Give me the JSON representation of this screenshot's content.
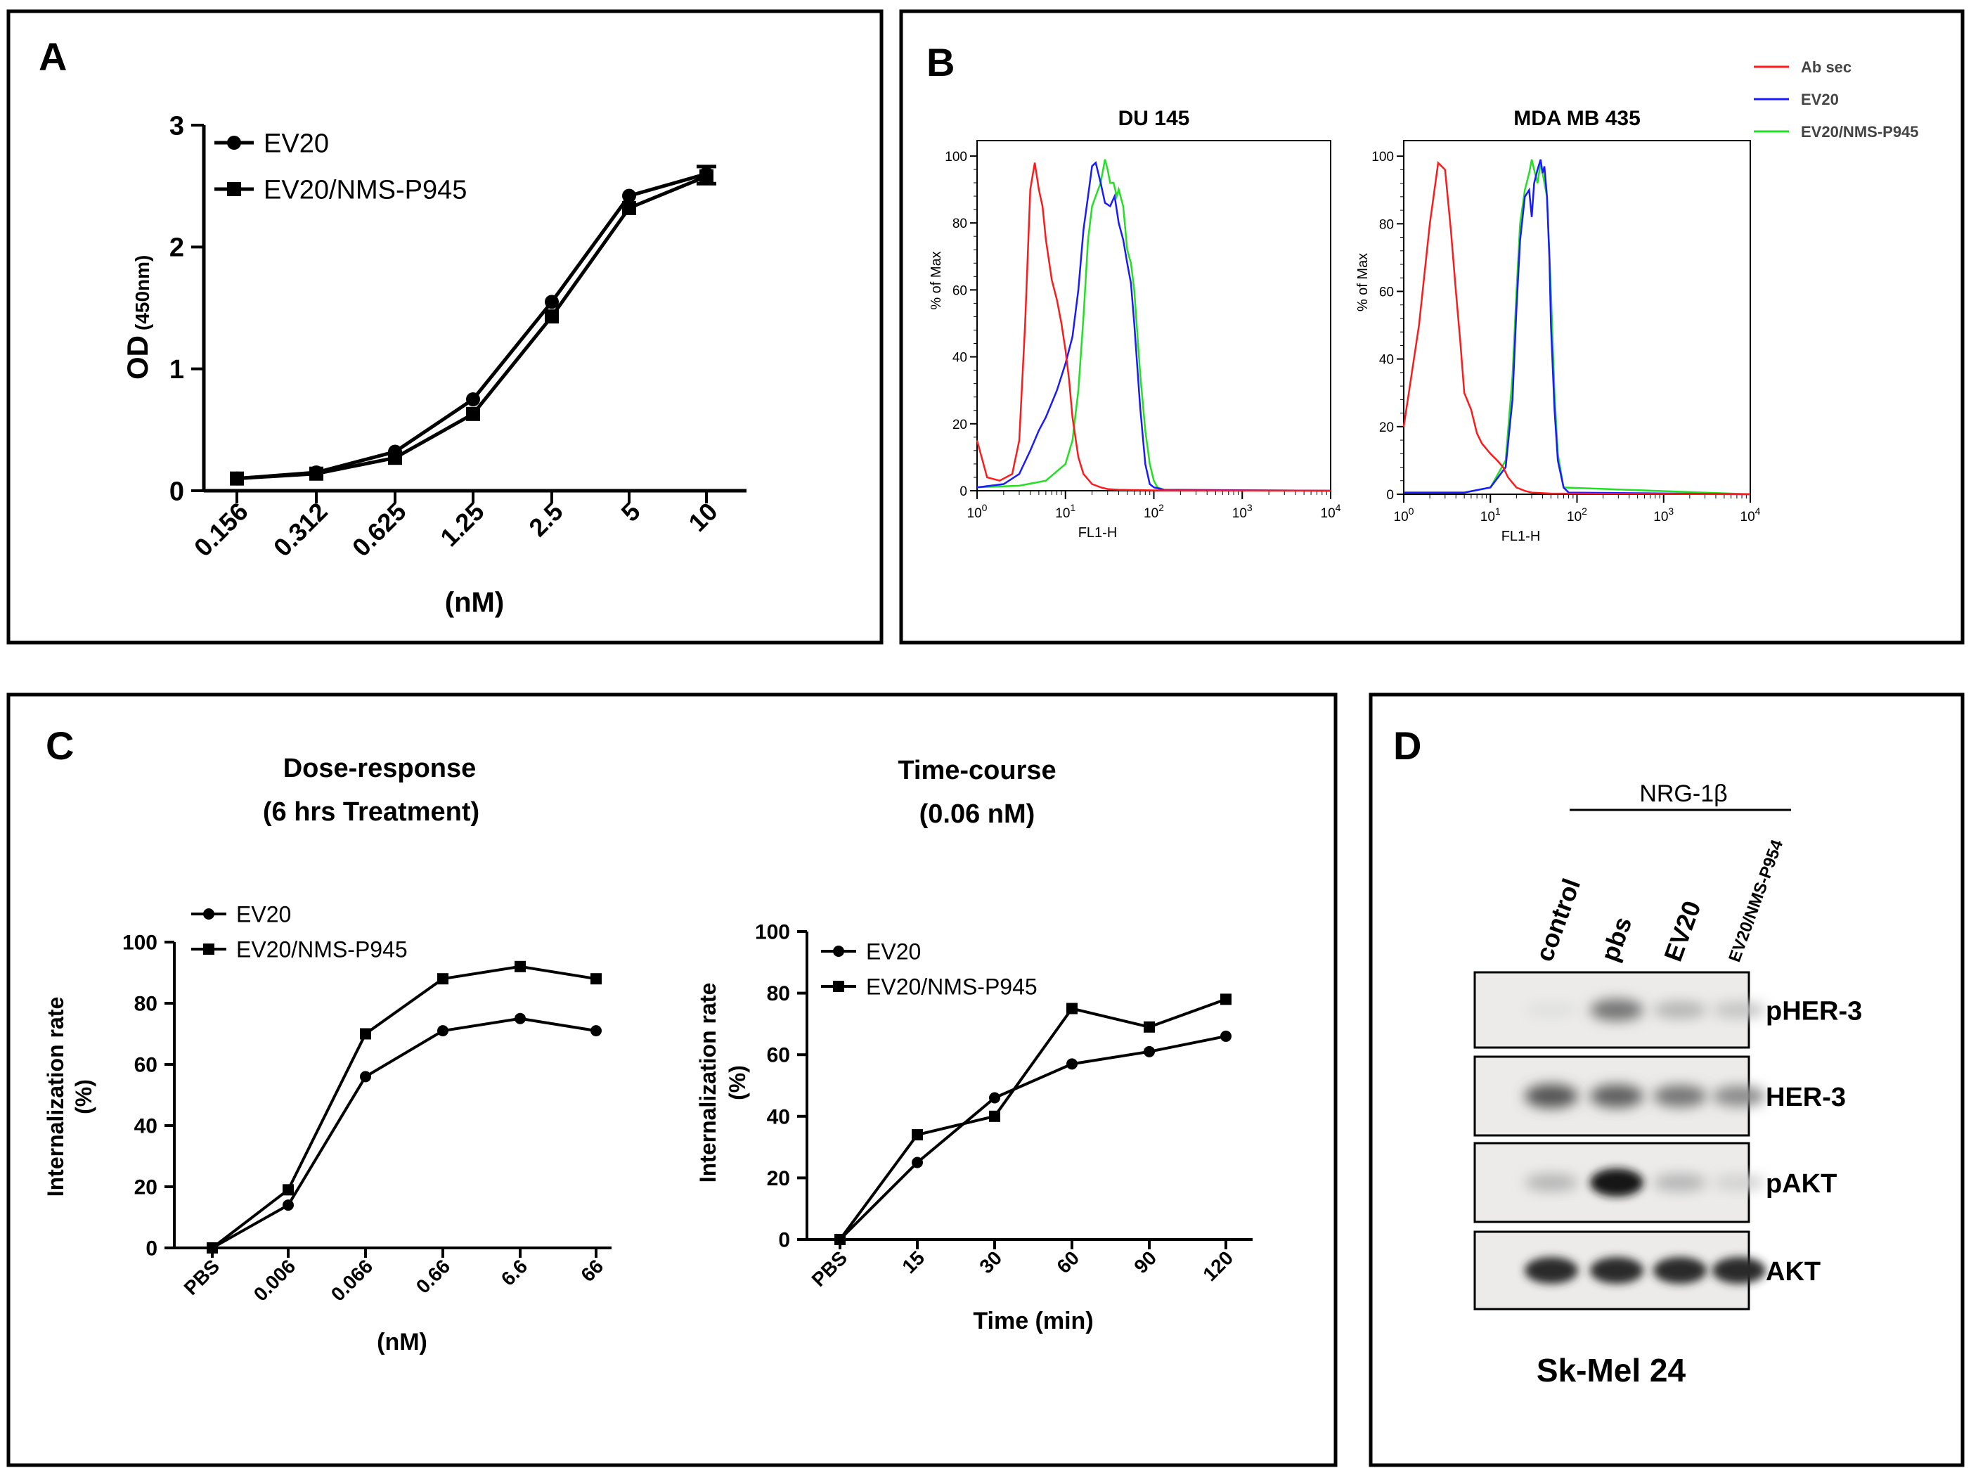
{
  "panels": {
    "A": {
      "letter": "A"
    },
    "B": {
      "letter": "B"
    },
    "C": {
      "letter": "C"
    },
    "D": {
      "letter": "D"
    }
  },
  "chart_data": [
    {
      "id": "A",
      "type": "line",
      "categories": [
        "0.156",
        "0.312",
        "0.625",
        "1.25",
        "2.5",
        "5",
        "10"
      ],
      "series": [
        {
          "name": "EV20",
          "marker": "circle",
          "values": [
            0.1,
            0.15,
            0.32,
            0.75,
            1.55,
            2.42,
            2.6
          ]
        },
        {
          "name": "EV20/NMS-P945",
          "marker": "square",
          "values": [
            0.1,
            0.14,
            0.27,
            0.63,
            1.43,
            2.32,
            2.58
          ]
        }
      ],
      "xlabel": "(nM)",
      "ylabel_main": "OD",
      "ylabel_sub": "(450nm)",
      "ylim": [
        0,
        3
      ],
      "yticks": [
        "0",
        "1",
        "2",
        "3"
      ],
      "legend": "top-left"
    },
    {
      "id": "B",
      "type": "area",
      "legend": "top-right",
      "legend_entries": [
        {
          "name": "Ab sec",
          "color": "#ff1a1a"
        },
        {
          "name": "EV20",
          "color": "#1a1aff"
        },
        {
          "name": "EV20/NMS-P945",
          "color": "#22e022"
        }
      ],
      "xlabel": "FL1-H",
      "ylabel": "% of Max",
      "xscale": "log",
      "xlim": [
        1,
        10000
      ],
      "ylim": [
        0,
        100
      ],
      "yticks": [
        "0",
        "20",
        "40",
        "60",
        "80",
        "100"
      ],
      "xticks": [
        {
          "base": "10",
          "exp": "0"
        },
        {
          "base": "10",
          "exp": "1"
        },
        {
          "base": "10",
          "exp": "2"
        },
        {
          "base": "10",
          "exp": "3"
        },
        {
          "base": "10",
          "exp": "4"
        }
      ],
      "plots": [
        {
          "title": "DU 145",
          "series": [
            {
              "name": "Ab sec",
              "x": [
                1,
                1.3,
                1.8,
                2.5,
                3,
                3.5,
                4,
                4.5,
                5,
                5.5,
                6,
                7,
                8,
                9,
                10,
                11,
                12,
                14,
                16,
                20,
                25,
                30,
                40,
                60,
                100,
                10000
              ],
              "y": [
                15,
                4,
                3,
                5,
                15,
                50,
                90,
                98,
                90,
                85,
                75,
                63,
                57,
                50,
                42,
                33,
                22,
                10,
                5,
                2,
                1,
                0.5,
                0.3,
                0.2,
                0.1,
                0
              ]
            },
            {
              "name": "EV20",
              "x": [
                1,
                2,
                3,
                4,
                5,
                6,
                8,
                10,
                12,
                14,
                16,
                18,
                20,
                22,
                25,
                28,
                32,
                36,
                40,
                45,
                50,
                55,
                60,
                70,
                80,
                90,
                100,
                130,
                10000
              ],
              "y": [
                1,
                2,
                5,
                12,
                18,
                22,
                30,
                38,
                46,
                60,
                78,
                88,
                97,
                98,
                92,
                86,
                85,
                88,
                80,
                75,
                68,
                62,
                50,
                25,
                8,
                2,
                1,
                0.3,
                0
              ]
            },
            {
              "name": "EV20/NMS-P945",
              "x": [
                1,
                3,
                6,
                10,
                12,
                14,
                16,
                18,
                20,
                22,
                25,
                28,
                30,
                32,
                35,
                38,
                40,
                45,
                50,
                55,
                60,
                70,
                80,
                90,
                100,
                110,
                130,
                10000
              ],
              "y": [
                1,
                1.5,
                3,
                8,
                15,
                30,
                52,
                75,
                85,
                88,
                92,
                99,
                96,
                92,
                92,
                88,
                90,
                85,
                72,
                68,
                60,
                35,
                18,
                8,
                3,
                1,
                0.3,
                0
              ]
            }
          ]
        },
        {
          "title": "MDA MB 435",
          "series": [
            {
              "name": "Ab sec",
              "x": [
                1,
                1.5,
                2,
                2.5,
                3,
                3.5,
                4,
                4.5,
                5,
                6,
                7,
                8,
                10,
                12,
                14,
                16,
                20,
                25,
                30,
                50,
                10000
              ],
              "y": [
                20,
                50,
                80,
                98,
                96,
                78,
                60,
                45,
                30,
                25,
                18,
                15,
                12,
                10,
                8,
                5,
                2,
                1,
                0.5,
                0.2,
                0
              ]
            },
            {
              "name": "EV20",
              "x": [
                1,
                5,
                10,
                15,
                18,
                20,
                22,
                25,
                28,
                30,
                32,
                35,
                38,
                40,
                42,
                45,
                48,
                50,
                55,
                60,
                70,
                80,
                10000
              ],
              "y": [
                0.5,
                0.5,
                2,
                8,
                28,
                55,
                75,
                88,
                90,
                82,
                92,
                96,
                99,
                95,
                97,
                88,
                70,
                50,
                25,
                10,
                2,
                0.5,
                0
              ]
            },
            {
              "name": "EV20/NMS-P945",
              "x": [
                1,
                5,
                10,
                15,
                18,
                20,
                22,
                25,
                28,
                30,
                32,
                35,
                38,
                40,
                45,
                50,
                55,
                60,
                70,
                10000
              ],
              "y": [
                0.5,
                0.5,
                2,
                10,
                35,
                60,
                80,
                90,
                95,
                99,
                96,
                92,
                98,
                95,
                88,
                60,
                30,
                12,
                2,
                0
              ]
            }
          ]
        }
      ]
    },
    {
      "id": "C-left",
      "type": "line",
      "title_line1": "Dose-response",
      "title_line2": "(6 hrs Treatment)",
      "categories": [
        "PBS",
        "0.006",
        "0.066",
        "0.66",
        "6.6",
        "66"
      ],
      "series": [
        {
          "name": "EV20",
          "marker": "circle",
          "values": [
            0,
            14,
            56,
            71,
            75,
            71
          ]
        },
        {
          "name": "EV20/NMS-P945",
          "marker": "square",
          "values": [
            0,
            19,
            70,
            88,
            92,
            88
          ]
        }
      ],
      "xlabel": "(nM)",
      "ylabel_line1": "Internalization rate",
      "ylabel_line2": "(%)",
      "ylim": [
        0,
        100
      ],
      "yticks": [
        "0",
        "20",
        "40",
        "60",
        "80",
        "100"
      ],
      "legend": "top-left"
    },
    {
      "id": "C-right",
      "type": "line",
      "title_line1": "Time-course",
      "title_line2": "(0.06 nM)",
      "categories": [
        "PBS",
        "15",
        "30",
        "60",
        "90",
        "120"
      ],
      "series": [
        {
          "name": "EV20",
          "marker": "circle",
          "values": [
            0,
            25,
            46,
            57,
            61,
            66
          ]
        },
        {
          "name": "EV20/NMS-P945",
          "marker": "square",
          "values": [
            0,
            34,
            40,
            75,
            69,
            78
          ]
        }
      ],
      "xlabel": "Time (min)",
      "ylabel_line1": "Internalization rate",
      "ylabel_line2": "(%)",
      "ylim": [
        0,
        100
      ],
      "yticks": [
        "0",
        "20",
        "40",
        "60",
        "80",
        "100"
      ],
      "legend": "top-left"
    },
    {
      "id": "D",
      "type": "table",
      "header": "NRG-1β",
      "lanes": [
        "control",
        "pbs",
        "EV20",
        "EV20/NMS-P954"
      ],
      "rows": [
        {
          "label": "pHER-3",
          "intensities": [
            0.05,
            0.55,
            0.25,
            0.18
          ]
        },
        {
          "label": "HER-3",
          "intensities": [
            0.7,
            0.65,
            0.55,
            0.45
          ]
        },
        {
          "label": "pAKT",
          "intensities": [
            0.25,
            1.0,
            0.25,
            0.12
          ]
        },
        {
          "label": "AKT",
          "intensities": [
            0.9,
            0.9,
            0.9,
            0.9
          ]
        }
      ],
      "cell_line": "Sk-Mel 24"
    }
  ]
}
